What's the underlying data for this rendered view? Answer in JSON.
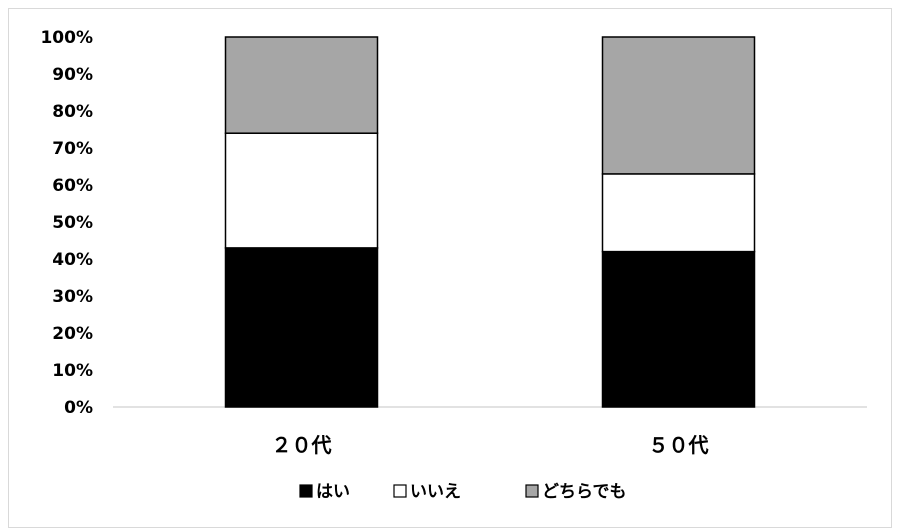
{
  "chart_data": {
    "type": "bar",
    "stacked": true,
    "categories": [
      "２０代",
      "５０代"
    ],
    "series": [
      {
        "name": "はい",
        "values": [
          43,
          42
        ],
        "color": "#000000"
      },
      {
        "name": "いいえ",
        "values": [
          31,
          21
        ],
        "color": "#ffffff"
      },
      {
        "name": "どちらでも",
        "values": [
          26,
          37
        ],
        "color": "#a6a6a6"
      }
    ],
    "y_ticks": [
      "0%",
      "10%",
      "20%",
      "30%",
      "40%",
      "50%",
      "60%",
      "70%",
      "80%",
      "90%",
      "100%"
    ],
    "ylim": [
      0,
      100
    ],
    "grid": false,
    "legend_position": "bottom"
  }
}
